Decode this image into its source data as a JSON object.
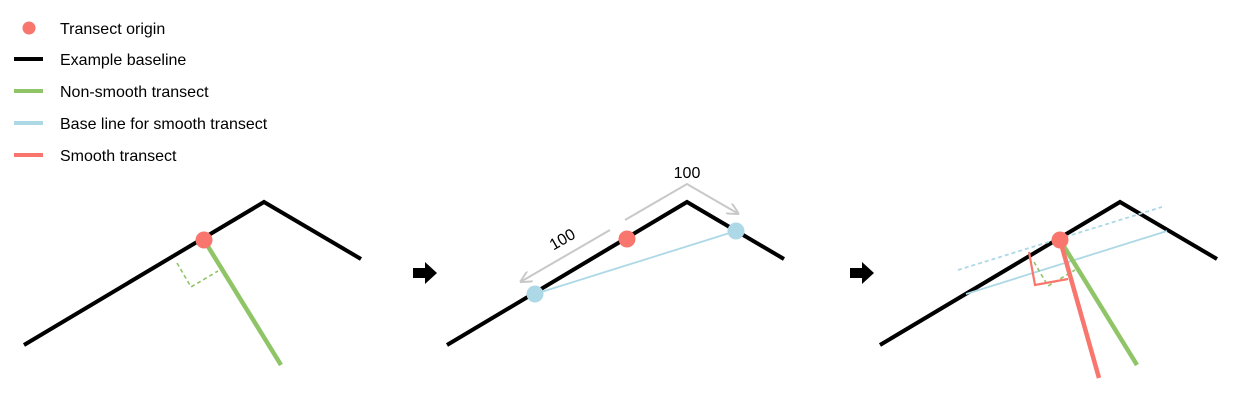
{
  "legend": {
    "items": [
      {
        "kind": "point",
        "label": "Transect origin",
        "color": "#F8766D"
      },
      {
        "kind": "line",
        "label": "Example baseline",
        "color": "#000000"
      },
      {
        "kind": "line",
        "label": "Non-smooth transect",
        "color": "#8FC567"
      },
      {
        "kind": "line",
        "label": "Base line for smooth transect",
        "color": "#ADD8E6"
      },
      {
        "kind": "line",
        "label": "Smooth transect",
        "color": "#F8766D"
      }
    ]
  },
  "panels": {
    "panel2": {
      "distance_left": "100",
      "distance_right": "100"
    }
  },
  "colors": {
    "baseline": "#000000",
    "origin": "#F8766D",
    "nonsmooth": "#8FC567",
    "smooth_base": "#ADD8E6",
    "smooth": "#F8766D",
    "measure": "#C8C8C8",
    "arrow": "#000000"
  },
  "icons": [
    "right-arrow-icon"
  ]
}
